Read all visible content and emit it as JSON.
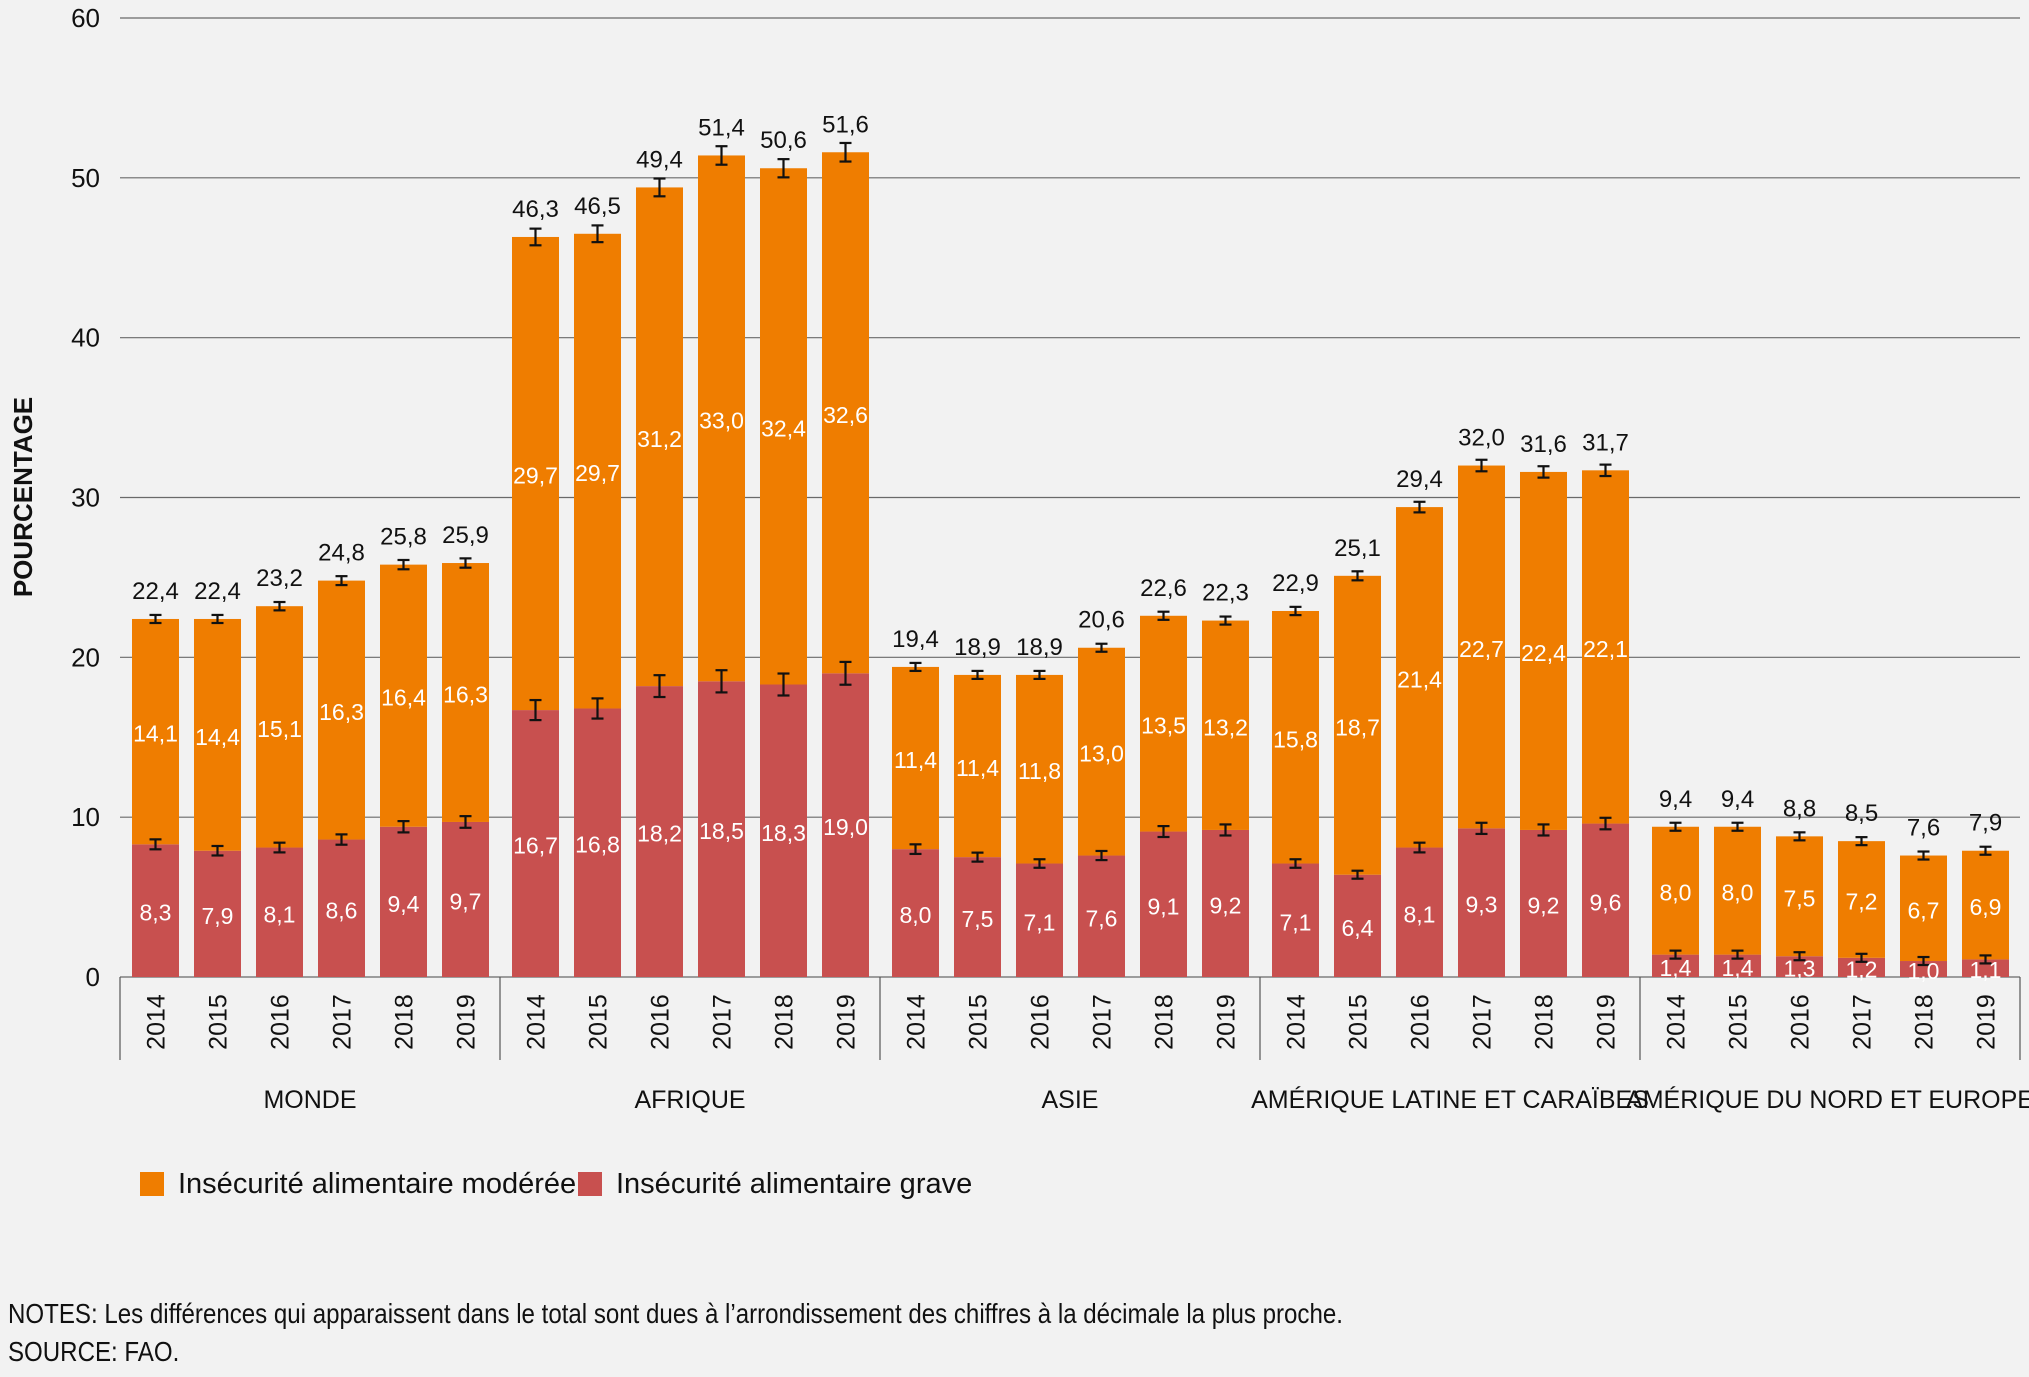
{
  "chart_data": {
    "type": "bar",
    "stacked": true,
    "ylabel": "POURCENTAGE",
    "ylim": [
      0,
      60
    ],
    "yticks": [
      0,
      10,
      20,
      30,
      40,
      50,
      60
    ],
    "grid": true,
    "legend_position": "bottom-left",
    "years": [
      "2014",
      "2015",
      "2016",
      "2017",
      "2018",
      "2019"
    ],
    "colors": {
      "moderate": "#ef7d00",
      "severe": "#c8504f"
    },
    "series": [
      {
        "name": "Insécurité alimentaire modérée",
        "key": "moderate"
      },
      {
        "name": "Insécurité alimentaire grave",
        "key": "severe"
      }
    ],
    "groups": [
      {
        "name": "MONDE",
        "severe": [
          8.3,
          7.9,
          8.1,
          8.6,
          9.4,
          9.7
        ],
        "severe_labels": [
          "8,3",
          "7,9",
          "8,1",
          "8,6",
          "9,4",
          "9,7"
        ],
        "moderate": [
          14.1,
          14.4,
          15.1,
          16.3,
          16.4,
          16.3
        ],
        "moderate_labels": [
          "14,1",
          "14,4",
          "15,1",
          "16,3",
          "16,4",
          "16,3"
        ],
        "total": [
          22.4,
          22.4,
          23.2,
          24.8,
          25.8,
          25.9
        ],
        "total_labels": [
          "22,4",
          "22,4",
          "23,2",
          "24,8",
          "25,8",
          "25,9"
        ]
      },
      {
        "name": "AFRIQUE",
        "severe": [
          16.7,
          16.8,
          18.2,
          18.5,
          18.3,
          19.0
        ],
        "severe_labels": [
          "16,7",
          "16,8",
          "18,2",
          "18,5",
          "18,3",
          "19,0"
        ],
        "moderate": [
          29.7,
          29.7,
          31.2,
          33.0,
          32.4,
          32.6
        ],
        "moderate_labels": [
          "29,7",
          "29,7",
          "31,2",
          "33,0",
          "32,4",
          "32,6"
        ],
        "total": [
          46.3,
          46.5,
          49.4,
          51.4,
          50.6,
          51.6
        ],
        "total_labels": [
          "46,3",
          "46,5",
          "49,4",
          "51,4",
          "50,6",
          "51,6"
        ]
      },
      {
        "name": "ASIE",
        "severe": [
          8.0,
          7.5,
          7.1,
          7.6,
          9.1,
          9.2
        ],
        "severe_labels": [
          "8,0",
          "7,5",
          "7,1",
          "7,6",
          "9,1",
          "9,2"
        ],
        "moderate": [
          11.4,
          11.4,
          11.8,
          13.0,
          13.5,
          13.2
        ],
        "moderate_labels": [
          "11,4",
          "11,4",
          "11,8",
          "13,0",
          "13,5",
          "13,2"
        ],
        "total": [
          19.4,
          18.9,
          18.9,
          20.6,
          22.6,
          22.3
        ],
        "total_labels": [
          "19,4",
          "18,9",
          "18,9",
          "20,6",
          "22,6",
          "22,3"
        ]
      },
      {
        "name": "AMÉRIQUE LATINE ET CARAÏBES",
        "severe": [
          7.1,
          6.4,
          8.1,
          9.3,
          9.2,
          9.6
        ],
        "severe_labels": [
          "7,1",
          "6,4",
          "8,1",
          "9,3",
          "9,2",
          "9,6"
        ],
        "moderate": [
          15.8,
          18.7,
          21.4,
          22.7,
          22.4,
          22.1
        ],
        "moderate_labels": [
          "15,8",
          "18,7",
          "21,4",
          "22,7",
          "22,4",
          "22,1"
        ],
        "total": [
          22.9,
          25.1,
          29.4,
          32.0,
          31.6,
          31.7
        ],
        "total_labels": [
          "22,9",
          "25,1",
          "29,4",
          "32,0",
          "31,6",
          "31,7"
        ]
      },
      {
        "name": "AMÉRIQUE DU NORD ET EUROPE",
        "severe": [
          1.4,
          1.4,
          1.3,
          1.2,
          1.0,
          1.1
        ],
        "severe_labels": [
          "1,4",
          "1,4",
          "1,3",
          "1,2",
          "1,0",
          "1,1"
        ],
        "moderate": [
          8.0,
          8.0,
          7.5,
          7.2,
          6.7,
          6.9
        ],
        "moderate_labels": [
          "8,0",
          "8,0",
          "7,5",
          "7,2",
          "6,7",
          "6,9"
        ],
        "total": [
          9.4,
          9.4,
          8.8,
          8.5,
          7.6,
          7.9
        ],
        "total_labels": [
          "9,4",
          "9,4",
          "8,8",
          "8,5",
          "7,6",
          "7,9"
        ]
      }
    ]
  },
  "notes": {
    "line1": "NOTES: Les différences qui apparaissent dans le total sont dues à l’arrondissement des chiffres à la décimale la plus proche.",
    "line2": "SOURCE: FAO."
  }
}
